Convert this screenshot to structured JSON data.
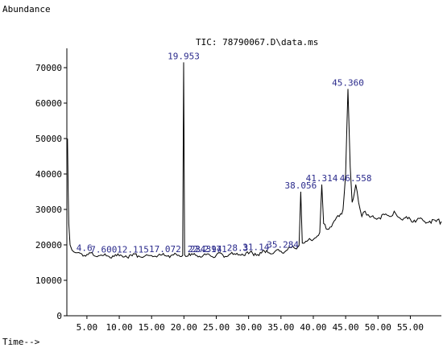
{
  "chart_data": {
    "type": "line",
    "title": "TIC: 78790067.D\\data.ms",
    "ylabel": "Abundance",
    "xlabel": "Time-->",
    "xlim": [
      1.9,
      59.8
    ],
    "ylim": [
      0,
      75000
    ],
    "x_ticks": [
      "5.00",
      "10.00",
      "15.00",
      "20.00",
      "25.00",
      "30.00",
      "35.00",
      "40.00",
      "45.00",
      "50.00",
      "55.00"
    ],
    "x_tick_values": [
      5,
      10,
      15,
      20,
      25,
      30,
      35,
      40,
      45,
      50,
      55
    ],
    "y_ticks": [
      "0",
      "10000",
      "20000",
      "30000",
      "40000",
      "50000",
      "60000",
      "70000"
    ],
    "y_tick_values": [
      0,
      10000,
      20000,
      30000,
      40000,
      50000,
      60000,
      70000
    ],
    "line_color": "#000000",
    "peak_label_color": "#2b2b8c",
    "series": [
      {
        "x": [
          2.0,
          2.1,
          2.2,
          2.4,
          2.7,
          3.0,
          3.5,
          4.0,
          5.0,
          6.0,
          7.0,
          8.0,
          9.0,
          10.0,
          11.0,
          12.0,
          13.0,
          14.0,
          15.0,
          16.0,
          17.0,
          18.0,
          19.0,
          19.8,
          19.953,
          20.1,
          21.0,
          22.0,
          23.0,
          24.0,
          25.0,
          26.0,
          27.0,
          28.0,
          29.0,
          30.0,
          31.0,
          32.0,
          33.0,
          34.0,
          35.0,
          36.0,
          37.0,
          37.8,
          38.056,
          38.3,
          39.0,
          40.0,
          41.0,
          41.314,
          41.6,
          42.0,
          43.0,
          44.0,
          44.6,
          45.0,
          45.36,
          45.7,
          46.0,
          46.558,
          47.0,
          47.5,
          48.0,
          48.5,
          49.0,
          50.0,
          51.0,
          52.0,
          52.5,
          53.0,
          54.0,
          55.0,
          56.0,
          57.0,
          58.0,
          59.0,
          59.8
        ],
        "y": [
          50000,
          36000,
          26000,
          20000,
          18500,
          18000,
          17800,
          17600,
          17300,
          17100,
          17000,
          16900,
          16900,
          16900,
          16900,
          16900,
          16900,
          16900,
          17000,
          17000,
          17000,
          17000,
          17000,
          17000,
          71500,
          17200,
          17000,
          17000,
          17100,
          17100,
          17100,
          17200,
          17300,
          17300,
          17400,
          17500,
          17600,
          17700,
          17800,
          18000,
          18200,
          18600,
          19200,
          19800,
          35000,
          20500,
          21000,
          21500,
          23500,
          37000,
          26000,
          24500,
          26000,
          28000,
          30000,
          40000,
          64000,
          42000,
          32000,
          37000,
          32000,
          28000,
          29500,
          28500,
          28000,
          27500,
          28500,
          28000,
          29500,
          28000,
          27500,
          27200,
          27000,
          26800,
          26700,
          26600,
          26600
        ]
      }
    ],
    "peak_labels": [
      {
        "text": "4.6",
        "x": 4.6
      },
      {
        "text": "7.600",
        "x": 7.6
      },
      {
        "text": "12.115",
        "x": 12.115
      },
      {
        "text": "17.072",
        "x": 17.072
      },
      {
        "text": "19.953",
        "x": 19.953
      },
      {
        "text": "22.2",
        "x": 22.2
      },
      {
        "text": "23.394",
        "x": 23.394
      },
      {
        "text": "24.171",
        "x": 24.171
      },
      {
        "text": "28.3",
        "x": 28.3
      },
      {
        "text": "31.14",
        "x": 31.14
      },
      {
        "text": "35.284",
        "x": 35.284
      },
      {
        "text": "38.056",
        "x": 38.056
      },
      {
        "text": "41.314",
        "x": 41.314
      },
      {
        "text": "45.360",
        "x": 45.36
      },
      {
        "text": "46.558",
        "x": 46.558
      }
    ]
  }
}
